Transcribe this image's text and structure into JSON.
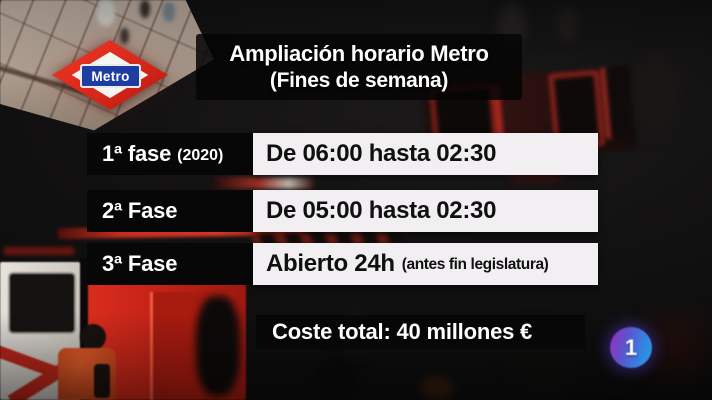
{
  "graphic": {
    "title": {
      "line1": "Ampliación horario Metro",
      "line2": "(Fines de semana)"
    },
    "metro_sign": {
      "label": "Metro"
    },
    "schedule": {
      "rows": [
        {
          "phase": "1ª fase",
          "phase_note": "(2020)",
          "hours": "De 06:00 hasta 02:30",
          "hours_note": ""
        },
        {
          "phase": "2ª Fase",
          "phase_note": "",
          "hours": "De 05:00 hasta 02:30",
          "hours_note": ""
        },
        {
          "phase": "3ª Fase",
          "phase_note": "",
          "hours": "Abierto 24h",
          "hours_note": "(antes fin legislatura)"
        }
      ]
    },
    "footer": {
      "cost_text": "Coste total: 40 millones €"
    },
    "channel": {
      "logo_text": "1"
    },
    "colors": {
      "metro_red": "#d8281b",
      "metro_blue": "#1e3da3",
      "panel_black": "#070707",
      "panel_white": "#f2eff2",
      "text_light": "#ffffff",
      "text_dark": "#101010",
      "channel_purple": "#8d36c0",
      "channel_blue": "#2f8ce6"
    }
  }
}
